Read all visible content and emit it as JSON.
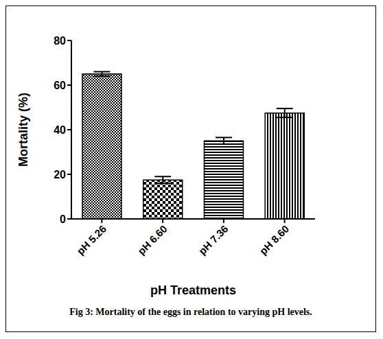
{
  "chart_data": {
    "type": "bar",
    "caption": "Fig 3: Mortality of the eggs in relation to varying pH levels.",
    "x_label": "pH Treatments",
    "y_label": "Mortality (%)",
    "categories": [
      "pH 5.26",
      "pH 6.60",
      "pH 7.36",
      "pH 8.60"
    ],
    "values": [
      65,
      17.5,
      35,
      47.5
    ],
    "errors": [
      1,
      1.5,
      1.5,
      2
    ],
    "color": "#000000",
    "ylim": [
      0,
      80
    ],
    "yticks": [
      0,
      20,
      40,
      60,
      80
    ],
    "grid": false
  }
}
